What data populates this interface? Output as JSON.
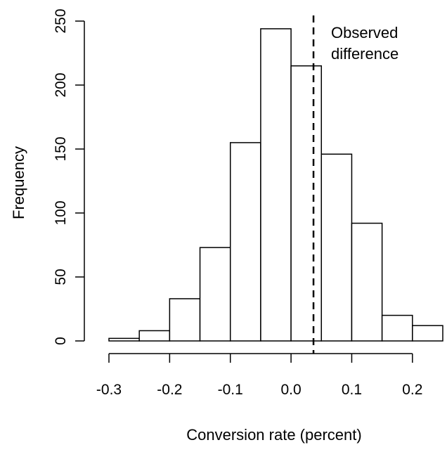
{
  "chart_data": {
    "type": "bar",
    "chart_kind": "histogram",
    "title": "",
    "xlabel": "Conversion rate (percent)",
    "ylabel": "Frequency",
    "bins": [
      {
        "start": -0.3,
        "end": -0.25,
        "count": 2
      },
      {
        "start": -0.25,
        "end": -0.2,
        "count": 8
      },
      {
        "start": -0.2,
        "end": -0.15,
        "count": 33
      },
      {
        "start": -0.15,
        "end": -0.1,
        "count": 73
      },
      {
        "start": -0.1,
        "end": -0.05,
        "count": 155
      },
      {
        "start": -0.05,
        "end": 0.0,
        "count": 244
      },
      {
        "start": 0.0,
        "end": 0.05,
        "count": 215
      },
      {
        "start": 0.05,
        "end": 0.1,
        "count": 146
      },
      {
        "start": 0.1,
        "end": 0.15,
        "count": 92
      },
      {
        "start": 0.15,
        "end": 0.2,
        "count": 20
      },
      {
        "start": 0.2,
        "end": 0.25,
        "count": 12
      }
    ],
    "xlim": [
      -0.3,
      0.25
    ],
    "ylim": [
      0,
      250
    ],
    "x_ticks": [
      {
        "value": -0.3,
        "label": "-0.3"
      },
      {
        "value": -0.2,
        "label": "-0.2"
      },
      {
        "value": -0.1,
        "label": "-0.1"
      },
      {
        "value": 0.0,
        "label": "0.0"
      },
      {
        "value": 0.1,
        "label": "0.1"
      },
      {
        "value": 0.2,
        "label": "0.2"
      }
    ],
    "y_ticks": [
      {
        "value": 0,
        "label": "0"
      },
      {
        "value": 50,
        "label": "50"
      },
      {
        "value": 100,
        "label": "100"
      },
      {
        "value": 150,
        "label": "150"
      },
      {
        "value": 200,
        "label": "200"
      },
      {
        "value": 250,
        "label": "250"
      }
    ],
    "reference_line": {
      "x": 0.037,
      "style": "dashed",
      "label_lines": [
        "Observed",
        "difference"
      ]
    },
    "grid": false,
    "legend": "none"
  }
}
